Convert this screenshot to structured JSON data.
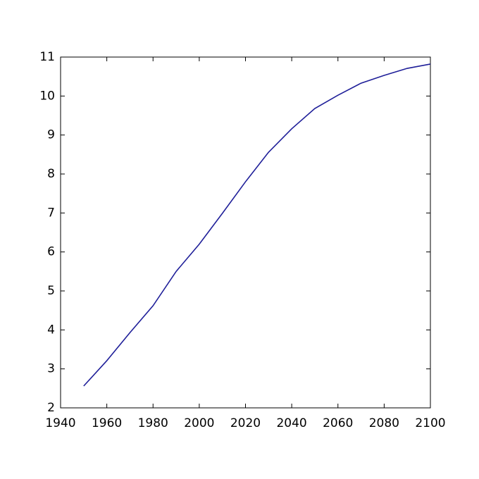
{
  "chart_data": {
    "type": "line",
    "x": [
      1950,
      1960,
      1970,
      1980,
      1990,
      2000,
      2010,
      2020,
      2030,
      2040,
      2050,
      2060,
      2070,
      2080,
      2090,
      2100
    ],
    "series": [
      {
        "color": "#1f1f99",
        "values": [
          2.56,
          3.21,
          3.93,
          4.62,
          5.5,
          6.2,
          6.99,
          7.8,
          8.56,
          9.16,
          9.68,
          10.02,
          10.33,
          10.53,
          10.71,
          10.82
        ]
      }
    ],
    "xlim": [
      1940,
      2100
    ],
    "xticks": [
      1940,
      1960,
      1980,
      2000,
      2020,
      2040,
      2060,
      2080,
      2100
    ],
    "ylim": [
      2,
      11
    ],
    "yticks": [
      2,
      3,
      4,
      5,
      6,
      7,
      8,
      9,
      10,
      11
    ],
    "grid": false
  }
}
